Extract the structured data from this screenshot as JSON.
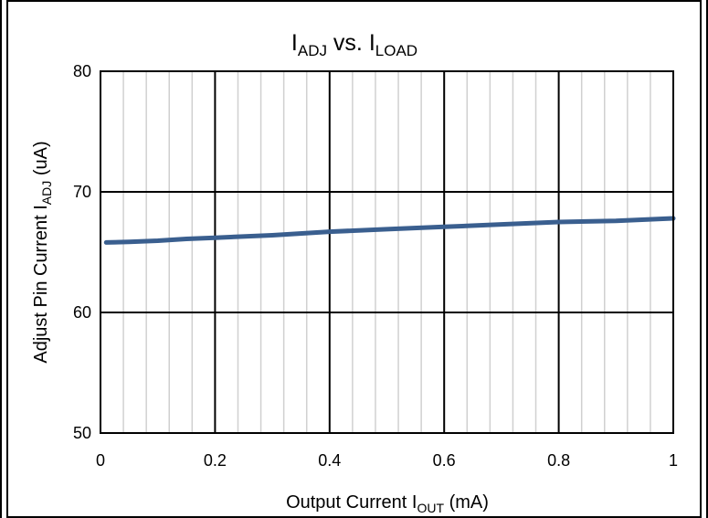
{
  "chart_data": {
    "type": "line",
    "title": {
      "main": "I",
      "sub1": "ADJ",
      "mid": " vs. I",
      "sub2": "LOAD"
    },
    "xlabel": {
      "main": "Output Current I",
      "sub": "OUT",
      "unit": " (mA)"
    },
    "ylabel": {
      "main": "Adjust Pin Current I",
      "sub": "ADJ",
      "unit": "  (uA)"
    },
    "xlim": [
      0,
      1
    ],
    "ylim": [
      50,
      80
    ],
    "x_ticks": [
      "0",
      "0.2",
      "0.4",
      "0.6",
      "0.8",
      "1"
    ],
    "y_ticks": [
      "50",
      "60",
      "70",
      "80"
    ],
    "grid": true,
    "series": [
      {
        "color": "#3a5f8f",
        "x": [
          0.01,
          0.05,
          0.1,
          0.15,
          0.2,
          0.3,
          0.4,
          0.5,
          0.6,
          0.7,
          0.8,
          0.9,
          1.0
        ],
        "y": [
          65.8,
          65.85,
          65.95,
          66.1,
          66.2,
          66.4,
          66.7,
          66.9,
          67.1,
          67.3,
          67.5,
          67.6,
          67.8
        ]
      }
    ]
  }
}
